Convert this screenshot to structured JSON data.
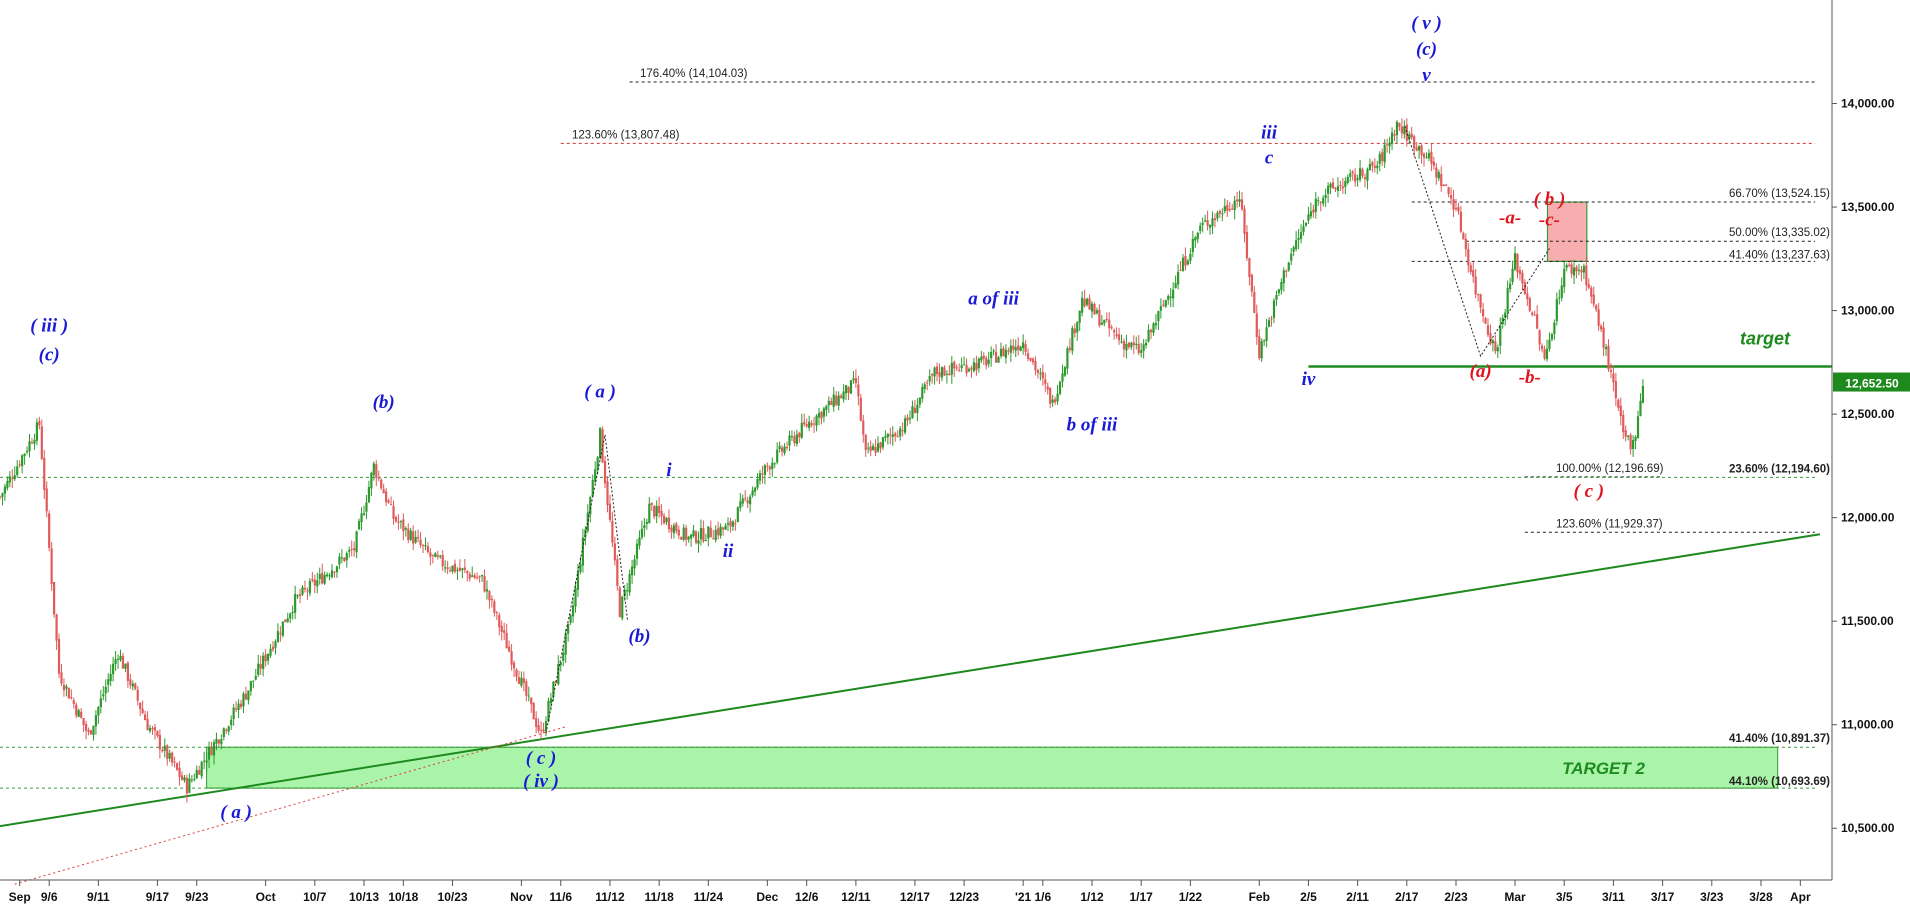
{
  "chart_data": {
    "type": "candlestick",
    "y_axis": {
      "range": [
        10250,
        14500
      ],
      "ticks": [
        "10,500.00",
        "11,000.00",
        "11,500.00",
        "12,000.00",
        "12,500.00",
        "13,000.00",
        "13,500.00",
        "14,000.00"
      ],
      "tick_values": [
        10500,
        11000,
        11500,
        12000,
        12500,
        13000,
        13500,
        14000
      ],
      "position": "right"
    },
    "x_axis": {
      "range": [
        0,
        185
      ],
      "ticks": [
        {
          "label": "Sep",
          "i": 2
        },
        {
          "label": "9/6",
          "i": 5
        },
        {
          "label": "9/11",
          "i": 10
        },
        {
          "label": "9/17",
          "i": 16
        },
        {
          "label": "9/23",
          "i": 20
        },
        {
          "label": "Oct",
          "i": 27
        },
        {
          "label": "10/7",
          "i": 32
        },
        {
          "label": "10/13",
          "i": 37
        },
        {
          "label": "10/18",
          "i": 41
        },
        {
          "label": "10/23",
          "i": 46
        },
        {
          "label": "Nov",
          "i": 53
        },
        {
          "label": "11/6",
          "i": 57
        },
        {
          "label": "11/12",
          "i": 62
        },
        {
          "label": "11/18",
          "i": 67
        },
        {
          "label": "11/24",
          "i": 72
        },
        {
          "label": "Dec",
          "i": 78
        },
        {
          "label": "12/6",
          "i": 82
        },
        {
          "label": "12/11",
          "i": 87
        },
        {
          "label": "12/17",
          "i": 93
        },
        {
          "label": "12/23",
          "i": 98
        },
        {
          "label": "'21",
          "i": 104
        },
        {
          "label": "1/6",
          "i": 106
        },
        {
          "label": "1/12",
          "i": 111
        },
        {
          "label": "1/17",
          "i": 116
        },
        {
          "label": "1/22",
          "i": 121
        },
        {
          "label": "Feb",
          "i": 128
        },
        {
          "label": "2/5",
          "i": 133
        },
        {
          "label": "2/11",
          "i": 138
        },
        {
          "label": "2/17",
          "i": 143
        },
        {
          "label": "2/23",
          "i": 148
        },
        {
          "label": "Mar",
          "i": 154
        },
        {
          "label": "3/5",
          "i": 159
        },
        {
          "label": "3/11",
          "i": 164
        },
        {
          "label": "3/17",
          "i": 169
        },
        {
          "label": "3/23",
          "i": 174
        },
        {
          "label": "3/28",
          "i": 179
        },
        {
          "label": "Apr",
          "i": 183
        }
      ]
    },
    "price_path": [
      [
        0,
        12100
      ],
      [
        4,
        12450
      ],
      [
        6,
        11250
      ],
      [
        9,
        10950
      ],
      [
        12,
        11350
      ],
      [
        15,
        11000
      ],
      [
        19,
        10700
      ],
      [
        21,
        10850
      ],
      [
        25,
        11150
      ],
      [
        30,
        11600
      ],
      [
        36,
        11850
      ],
      [
        38,
        12250
      ],
      [
        40,
        12000
      ],
      [
        44,
        11800
      ],
      [
        49,
        11700
      ],
      [
        53,
        11200
      ],
      [
        55,
        10950
      ],
      [
        58,
        11500
      ],
      [
        61,
        12400
      ],
      [
        63,
        11550
      ],
      [
        66,
        12050
      ],
      [
        70,
        11900
      ],
      [
        74,
        11950
      ],
      [
        78,
        12250
      ],
      [
        82,
        12450
      ],
      [
        87,
        12650
      ],
      [
        88,
        12300
      ],
      [
        92,
        12450
      ],
      [
        95,
        12700
      ],
      [
        100,
        12750
      ],
      [
        104,
        12850
      ],
      [
        107,
        12550
      ],
      [
        110,
        13050
      ],
      [
        114,
        12850
      ],
      [
        116,
        12800
      ],
      [
        118,
        13000
      ],
      [
        122,
        13400
      ],
      [
        126,
        13550
      ],
      [
        128,
        12800
      ],
      [
        131,
        13250
      ],
      [
        134,
        13550
      ],
      [
        138,
        13650
      ],
      [
        140,
        13700
      ],
      [
        142,
        13900
      ],
      [
        145,
        13750
      ],
      [
        148,
        13500
      ],
      [
        150,
        13100
      ],
      [
        152,
        12800
      ],
      [
        154,
        13250
      ],
      [
        156,
        12950
      ],
      [
        157,
        12750
      ],
      [
        159,
        13200
      ],
      [
        161,
        13200
      ],
      [
        163,
        12850
      ],
      [
        165,
        12400
      ],
      [
        166,
        12350
      ],
      [
        167,
        12650
      ]
    ],
    "last_price": "12,652.50",
    "levels": [
      {
        "label": "176.40% (14,104.03)",
        "value": 14104.03
      },
      {
        "label": "123.60% (13,807.48)",
        "value": 13807.48
      },
      {
        "label": "66.70% (13,524.15)",
        "value": 13524.15
      },
      {
        "label": "50.00% (13,335.02)",
        "value": 13335.02
      },
      {
        "label": "41.40% (13,237.63)",
        "value": 13237.63
      },
      {
        "label": "100.00% (12,196.69)",
        "value": 12196.69
      },
      {
        "label": "23.60% (12,194.60)",
        "value": 12194.6
      },
      {
        "label": "123.60% (11,929.37)",
        "value": 11929.37
      },
      {
        "label": "41.40% (10,891.37)",
        "value": 10891.37
      },
      {
        "label": "44.10% (10,693.69)",
        "value": 10693.69
      }
    ],
    "target_line": {
      "label": "target",
      "value": 12730
    },
    "target_zone": {
      "label": "TARGET 2",
      "low": 10693.69,
      "high": 10891.37
    },
    "resistance_box": {
      "low": 13237.63,
      "high": 13524.15
    },
    "trendline": {
      "from": [
        0,
        10510
      ],
      "to": [
        185,
        11920
      ]
    },
    "wave_labels": [
      {
        "text": "( iii )",
        "i": 5,
        "v": 12900,
        "color": "#1a1ad6"
      },
      {
        "text": "(c)",
        "i": 5,
        "v": 12760,
        "color": "#1a1ad6"
      },
      {
        "text": "(b)",
        "i": 39,
        "v": 12530,
        "color": "#1a1ad6"
      },
      {
        "text": "( a )",
        "i": 61,
        "v": 12580,
        "color": "#1a1ad6"
      },
      {
        "text": "i",
        "i": 68,
        "v": 12200,
        "color": "#1a1ad6"
      },
      {
        "text": "(b)",
        "i": 65,
        "v": 11400,
        "color": "#1a1ad6"
      },
      {
        "text": "ii",
        "i": 74,
        "v": 11810,
        "color": "#1a1ad6"
      },
      {
        "text": "a of iii",
        "i": 101,
        "v": 13030,
        "color": "#1a1ad6"
      },
      {
        "text": "b of iii",
        "i": 111,
        "v": 12420,
        "color": "#1a1ad6"
      },
      {
        "text": "iii",
        "i": 129,
        "v": 13830,
        "color": "#1a1ad6"
      },
      {
        "text": "c",
        "i": 129,
        "v": 13710,
        "color": "#1a1ad6"
      },
      {
        "text": "iv",
        "i": 133,
        "v": 12640,
        "color": "#1a1ad6"
      },
      {
        "text": "( v )",
        "i": 145,
        "v": 14360,
        "color": "#1a1ad6"
      },
      {
        "text": "(c)",
        "i": 145,
        "v": 14235,
        "color": "#1a1ad6"
      },
      {
        "text": "v",
        "i": 145,
        "v": 14110,
        "color": "#1a1ad6"
      },
      {
        "text": "-a-",
        "i": 153.5,
        "v": 13420,
        "color": "#e0141e"
      },
      {
        "text": "( b )",
        "i": 157.5,
        "v": 13510,
        "color": "#e0141e"
      },
      {
        "text": "-c-",
        "i": 157.5,
        "v": 13410,
        "color": "#e0141e"
      },
      {
        "text": "(a)",
        "i": 150.5,
        "v": 12680,
        "color": "#e0141e"
      },
      {
        "text": "-b-",
        "i": 155.5,
        "v": 12650,
        "color": "#e0141e"
      },
      {
        "text": "( c )",
        "i": 161.5,
        "v": 12100,
        "color": "#e0141e"
      },
      {
        "text": "( c )",
        "i": 55,
        "v": 10810,
        "color": "#1a1ad6"
      },
      {
        "text": "( iv )",
        "i": 55,
        "v": 10700,
        "color": "#1a1ad6"
      },
      {
        "text": "( a )",
        "i": 24,
        "v": 10550,
        "color": "#1a1ad6"
      }
    ]
  }
}
